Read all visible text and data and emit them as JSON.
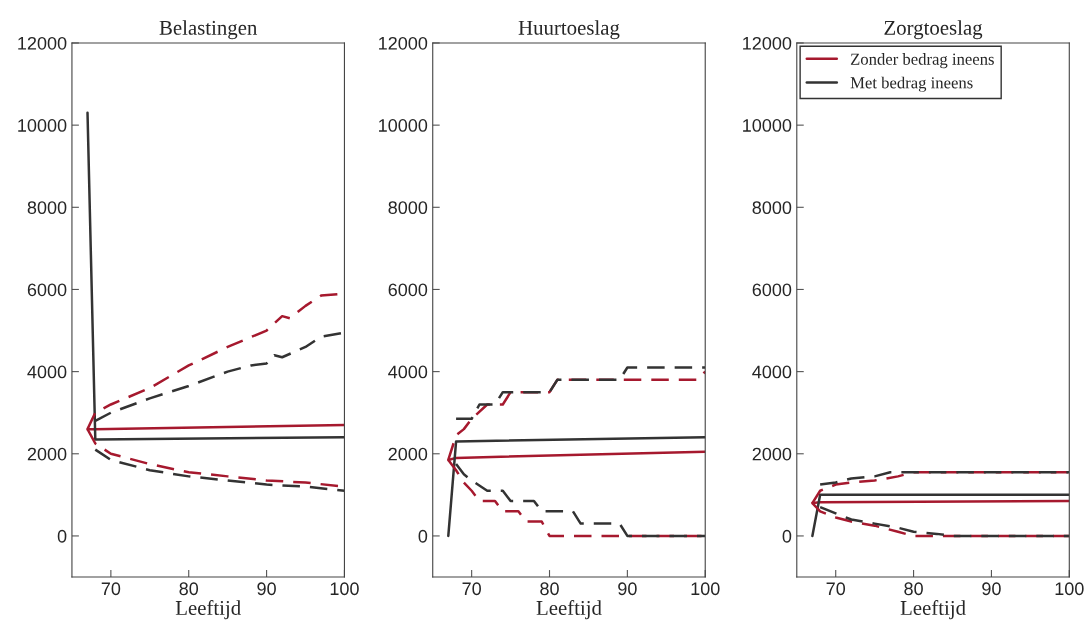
{
  "chart_data": [
    {
      "type": "line",
      "title": "Belastingen",
      "xlabel": "Leeftijd",
      "xlim": [
        65,
        100
      ],
      "ylim": [
        -1000,
        12000
      ],
      "xticks": [
        70,
        80,
        90,
        100
      ],
      "yticks": [
        0,
        2000,
        4000,
        6000,
        8000,
        10000,
        12000
      ],
      "grid": false,
      "series": [
        {
          "color": "#a6192e",
          "line_style": "solid",
          "x": [
            67,
            68,
            100
          ],
          "values": [
            2600,
            2600,
            2700
          ]
        },
        {
          "color": "#333333",
          "line_style": "solid",
          "x": [
            67,
            68,
            100
          ],
          "values": [
            10300,
            2350,
            2400
          ]
        },
        {
          "color": "#a6192e",
          "line_style": "dashed",
          "x": [
            67,
            68,
            70,
            75,
            80,
            85,
            90,
            92,
            93,
            95,
            97,
            100
          ],
          "values": [
            2600,
            3000,
            3200,
            3600,
            4150,
            4600,
            5000,
            5350,
            5300,
            5600,
            5850,
            5900
          ]
        },
        {
          "color": "#333333",
          "line_style": "dashed",
          "x": [
            68,
            70,
            75,
            80,
            85,
            88,
            90,
            91,
            92,
            95,
            97,
            100
          ],
          "values": [
            2800,
            3000,
            3350,
            3650,
            4000,
            4150,
            4200,
            4400,
            4350,
            4600,
            4850,
            4950
          ]
        },
        {
          "color": "#a6192e",
          "line_style": "dashed",
          "x": [
            67,
            68,
            70,
            75,
            80,
            85,
            90,
            95,
            100
          ],
          "values": [
            2600,
            2250,
            2000,
            1750,
            1550,
            1450,
            1350,
            1300,
            1200
          ]
        },
        {
          "color": "#333333",
          "line_style": "dashed",
          "x": [
            68,
            70,
            75,
            80,
            85,
            90,
            95,
            100
          ],
          "values": [
            2100,
            1850,
            1600,
            1450,
            1350,
            1250,
            1200,
            1100
          ]
        }
      ]
    },
    {
      "type": "line",
      "title": "Huurtoeslag",
      "xlabel": "Leeftijd",
      "xlim": [
        65,
        100
      ],
      "ylim": [
        -1000,
        12000
      ],
      "xticks": [
        70,
        80,
        90,
        100
      ],
      "yticks": [
        0,
        2000,
        4000,
        6000,
        8000,
        10000,
        12000
      ],
      "grid": false,
      "series": [
        {
          "color": "#a6192e",
          "line_style": "solid",
          "x": [
            67,
            68,
            100
          ],
          "values": [
            1850,
            1900,
            2050
          ]
        },
        {
          "color": "#333333",
          "line_style": "solid",
          "x": [
            67,
            68,
            100
          ],
          "values": [
            0,
            2300,
            2400
          ]
        },
        {
          "color": "#a6192e",
          "line_style": "dashed",
          "x": [
            67,
            68,
            69,
            70,
            72,
            74,
            75,
            80,
            81,
            99,
            100
          ],
          "values": [
            1850,
            2450,
            2600,
            2850,
            3200,
            3200,
            3500,
            3500,
            3800,
            3800,
            4000
          ]
        },
        {
          "color": "#333333",
          "line_style": "dashed",
          "x": [
            68,
            70,
            71,
            73,
            74,
            80,
            81,
            89,
            90,
            100
          ],
          "values": [
            2850,
            2850,
            3200,
            3200,
            3500,
            3500,
            3800,
            3800,
            4100,
            4100
          ]
        },
        {
          "color": "#a6192e",
          "line_style": "dashed",
          "x": [
            67,
            68,
            69,
            70,
            71,
            73,
            74,
            76,
            77,
            79,
            80,
            100
          ],
          "values": [
            1850,
            1600,
            1300,
            1100,
            850,
            850,
            600,
            600,
            350,
            350,
            0,
            0
          ]
        },
        {
          "color": "#333333",
          "line_style": "dashed",
          "x": [
            68,
            69,
            70,
            72,
            74,
            75,
            78,
            79,
            83,
            84,
            89,
            90,
            100
          ],
          "values": [
            1750,
            1500,
            1350,
            1100,
            1100,
            850,
            850,
            600,
            600,
            300,
            300,
            0,
            0
          ]
        }
      ]
    },
    {
      "type": "line",
      "title": "Zorgtoeslag",
      "xlabel": "Leeftijd",
      "xlim": [
        65,
        100
      ],
      "ylim": [
        -1000,
        12000
      ],
      "xticks": [
        70,
        80,
        90,
        100
      ],
      "yticks": [
        0,
        2000,
        4000,
        6000,
        8000,
        10000,
        12000
      ],
      "grid": false,
      "legend": "top left",
      "series": [
        {
          "name": "Zonder bedrag ineens",
          "color": "#a6192e",
          "line_style": "solid",
          "x": [
            67,
            68,
            100
          ],
          "values": [
            800,
            820,
            850
          ]
        },
        {
          "name": "Met bedrag ineens",
          "color": "#333333",
          "line_style": "solid",
          "x": [
            67,
            68,
            100
          ],
          "values": [
            0,
            1000,
            1000
          ]
        },
        {
          "color": "#a6192e",
          "line_style": "dashed",
          "x": [
            67,
            68,
            70,
            72,
            75,
            78,
            80,
            100
          ],
          "values": [
            800,
            1100,
            1250,
            1300,
            1350,
            1450,
            1550,
            1550
          ]
        },
        {
          "color": "#333333",
          "line_style": "dashed",
          "x": [
            68,
            70,
            72,
            75,
            77,
            100
          ],
          "values": [
            1250,
            1300,
            1400,
            1450,
            1550,
            1550
          ]
        },
        {
          "color": "#a6192e",
          "line_style": "dashed",
          "x": [
            67,
            68,
            70,
            72,
            75,
            78,
            80,
            100
          ],
          "values": [
            800,
            600,
            450,
            350,
            250,
            100,
            0,
            0
          ]
        },
        {
          "color": "#333333",
          "line_style": "dashed",
          "x": [
            68,
            70,
            72,
            75,
            78,
            80,
            83,
            85,
            100
          ],
          "values": [
            700,
            550,
            400,
            300,
            200,
            100,
            50,
            0,
            0
          ]
        }
      ]
    }
  ]
}
